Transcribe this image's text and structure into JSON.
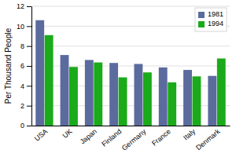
{
  "chart_data": {
    "type": "bar",
    "categories": [
      "USA",
      "UK",
      "Japan",
      "Finland",
      "Germany",
      "France",
      "Italy",
      "Denmark"
    ],
    "series": [
      {
        "name": "1981",
        "color": "#5b6b9e",
        "values": [
          10.6,
          7.1,
          6.6,
          6.3,
          6.2,
          5.85,
          5.6,
          5.0
        ]
      },
      {
        "name": "1994",
        "color": "#1aaa1a",
        "values": [
          9.1,
          5.9,
          6.35,
          4.85,
          5.35,
          4.35,
          4.95,
          6.75
        ]
      }
    ],
    "ylabel": "Per Thousand People",
    "ylim": [
      0,
      12
    ],
    "yticks": [
      0,
      2,
      4,
      6,
      8,
      10,
      12
    ],
    "grid": true,
    "legend": "upper right"
  }
}
